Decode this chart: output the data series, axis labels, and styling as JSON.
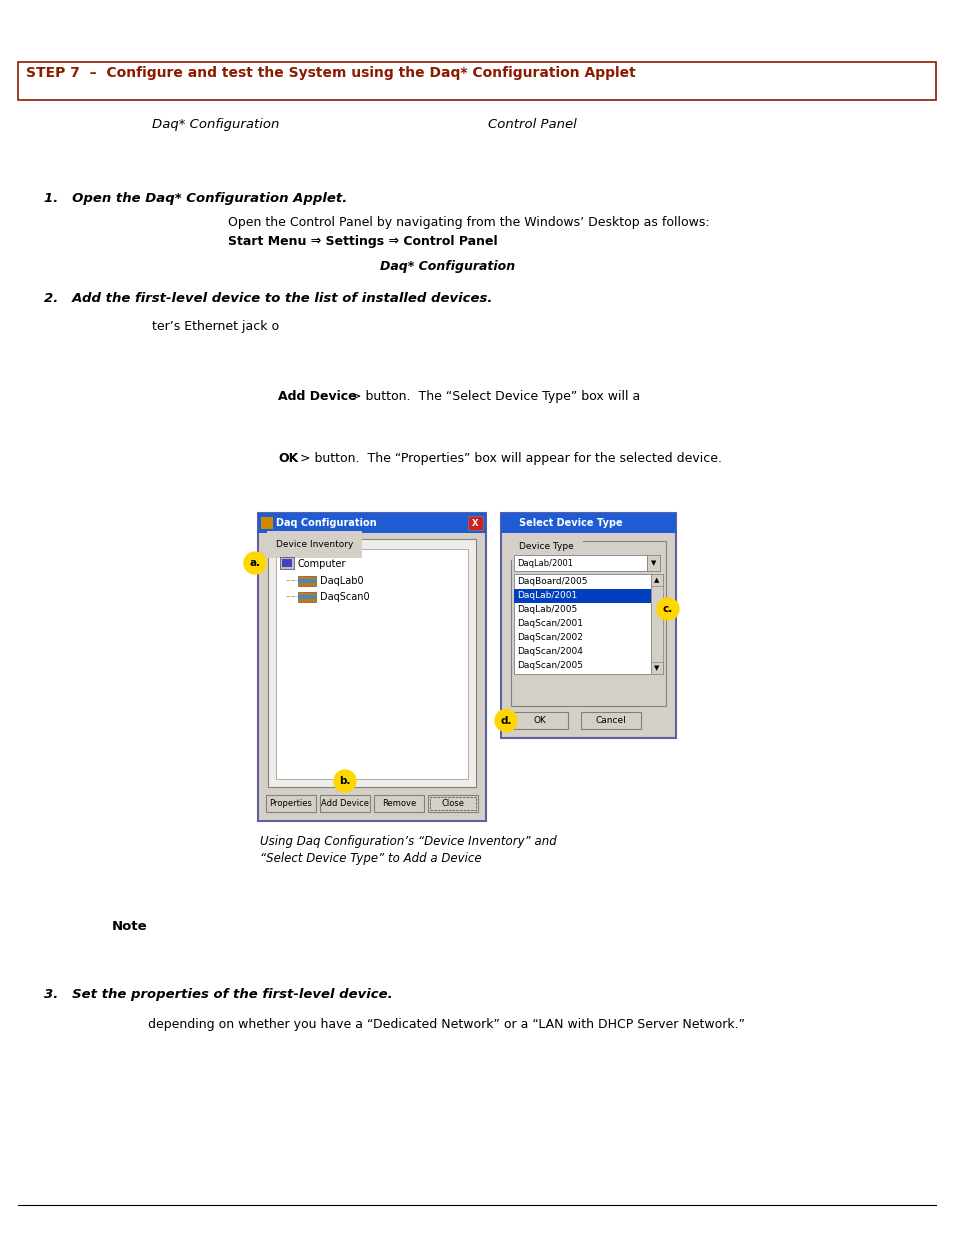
{
  "bg_color": "#ffffff",
  "header_box_color": "#8B1A00",
  "header_text": "STEP 7  –  Configure and test the System using the Daq* Configuration Applet",
  "header_text_color": "#8B1A00",
  "col1_label": "Daq* Configuration",
  "col2_label": "Control Panel",
  "step1_title": "1.   Open the Daq* Configuration Applet.",
  "step1_body1": "Open the Control Panel by navigating from the Windows’ Desktop as follows:",
  "step1_body2": "Start Menu ⇒ Settings ⇒ Control Panel",
  "step1_body3": "Daq* Configuration",
  "step2_title": "2.   Add the first-level device to the list of installed devices.",
  "step2_body1": "ter’s Ethernet jack o",
  "add_device_bold": "Add Device",
  "add_device_rest": "> button.  The “Select Device Type” box will a",
  "ok_bold": "OK",
  "ok_rest": "> button.  The “Properties” box will appear for the selected device.",
  "caption_line1": "Using Daq Configuration’s “Device Inventory” and",
  "caption_line2": "“Select Device Type” to Add a Device",
  "note_label": "Note",
  "step3_title": "3.   Set the properties of the first-level device.",
  "step3_body1": "depending on whether you have a “Dedicated Network” or a “LAN with DHCP Server Network.”",
  "dlg_title_color": "#1f5cd4",
  "dlg_bg": "#d4d0c8",
  "dlg_close_color": "#cc3333",
  "highlight_color": "#0040c0",
  "yellow": "#FFD700",
  "list_items": [
    "DaqBoard/2005",
    "DaqLab/2001",
    "DaqLab/2005",
    "DaqScan/2001",
    "DaqScan/2002",
    "DaqScan/2004",
    "DaqScan/2005"
  ],
  "dropdown_text": "DaqLab/2001"
}
